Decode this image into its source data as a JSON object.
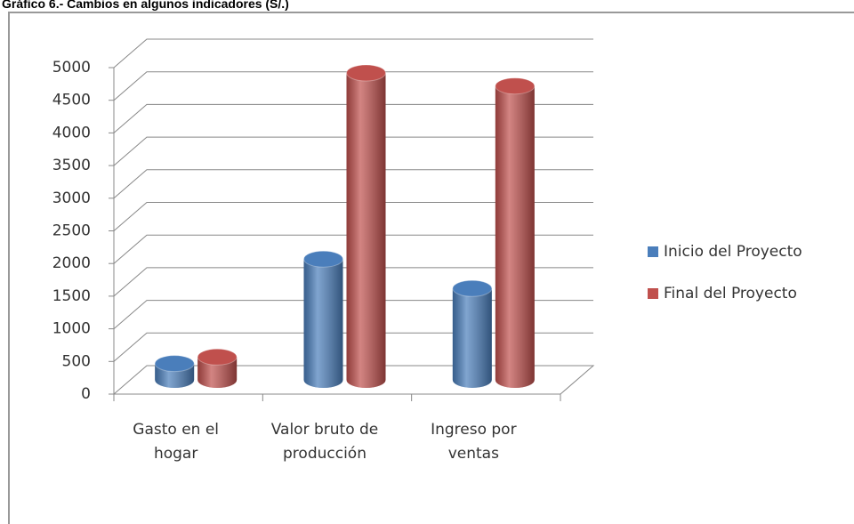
{
  "chart_data": {
    "type": "bar3d",
    "title": "Gráfico 6.- Cambios en algunos indicadores (S/.)",
    "categories": [
      "Gasto en el hogar",
      "Valor bruto de producción",
      "Ingreso por ventas"
    ],
    "series": [
      {
        "name": "Inicio del Proyecto",
        "color": "#4a7ebb",
        "values": [
          250,
          1850,
          1400
        ]
      },
      {
        "name": "Final del Proyecto",
        "color": "#c0504d",
        "values": [
          350,
          4700,
          4500
        ]
      }
    ],
    "ylim": [
      0,
      5000
    ],
    "yticks": [
      0,
      500,
      1000,
      1500,
      2000,
      2500,
      3000,
      3500,
      4000,
      4500,
      5000
    ],
    "grid": true,
    "legend": "right"
  }
}
